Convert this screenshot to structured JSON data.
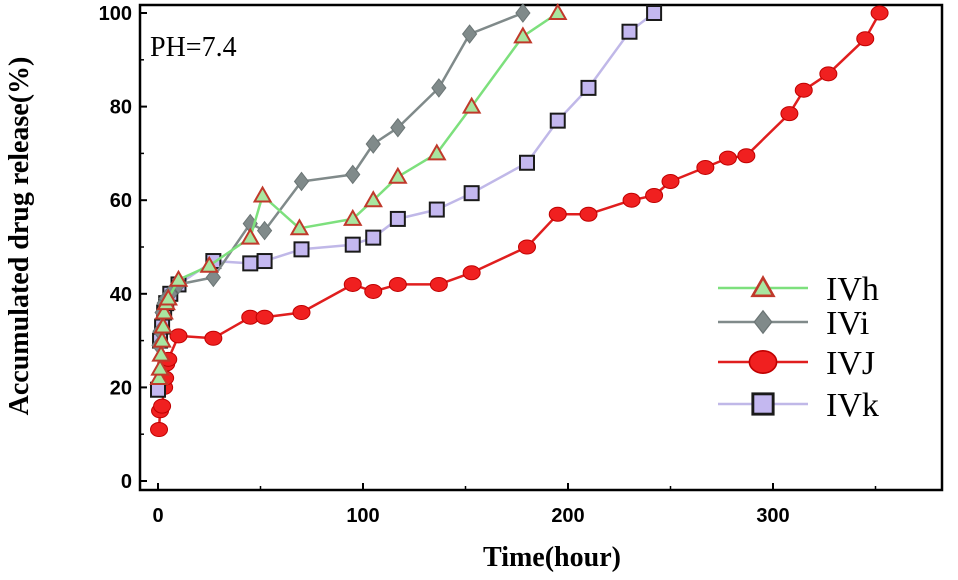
{
  "chart_data": {
    "type": "line",
    "title": "",
    "annotation": "PH=7.4",
    "xlabel": "Time(hour)",
    "ylabel": "Accumulated drug release(%)",
    "xlim": [
      -5,
      385
    ],
    "ylim": [
      -2,
      101
    ],
    "x_ticks": [
      0,
      100,
      200,
      300
    ],
    "y_ticks": [
      0,
      20,
      40,
      60,
      80,
      100
    ],
    "grid": false,
    "legend_position": "right",
    "series": [
      {
        "name": "IVh",
        "marker": "triangle",
        "line_color": "#7de07d",
        "marker_fill": "#a8e6a0",
        "marker_stroke": "#c0392b",
        "points": [
          [
            0.5,
            22
          ],
          [
            1,
            24
          ],
          [
            1.5,
            27
          ],
          [
            2,
            30
          ],
          [
            2.5,
            33
          ],
          [
            3,
            36
          ],
          [
            4,
            38
          ],
          [
            5,
            39
          ],
          [
            10,
            43
          ],
          [
            25,
            46
          ],
          [
            45,
            52
          ],
          [
            51,
            61
          ],
          [
            69,
            54
          ],
          [
            95,
            56
          ],
          [
            105,
            60
          ],
          [
            117,
            65
          ],
          [
            136,
            70
          ],
          [
            153,
            80
          ],
          [
            178,
            95
          ],
          [
            195,
            100
          ]
        ]
      },
      {
        "name": "IVi",
        "marker": "diamond",
        "line_color": "#808a8a",
        "marker_fill": "#808a8a",
        "marker_stroke": "#6b7575",
        "points": [
          [
            0.5,
            29
          ],
          [
            1,
            32
          ],
          [
            2,
            36
          ],
          [
            3,
            38
          ],
          [
            4,
            39
          ],
          [
            6,
            40
          ],
          [
            10,
            42
          ],
          [
            27,
            43.5
          ],
          [
            45,
            55
          ],
          [
            52,
            53.5
          ],
          [
            70,
            64
          ],
          [
            95,
            65.5
          ],
          [
            105,
            72
          ],
          [
            117,
            75.5
          ],
          [
            137,
            84
          ],
          [
            152,
            95.5
          ],
          [
            178,
            100
          ]
        ]
      },
      {
        "name": "IVJ",
        "marker": "circle",
        "line_color": "#e01e1e",
        "marker_fill": "#f02020",
        "marker_stroke": "#c00000",
        "points": [
          [
            0.5,
            11
          ],
          [
            1,
            15
          ],
          [
            2,
            16
          ],
          [
            3,
            20
          ],
          [
            3.5,
            22
          ],
          [
            4,
            25
          ],
          [
            5,
            26
          ],
          [
            10,
            31
          ],
          [
            27,
            30.5
          ],
          [
            45,
            35
          ],
          [
            52,
            35
          ],
          [
            70,
            36
          ],
          [
            95,
            42
          ],
          [
            105,
            40.5
          ],
          [
            117,
            42
          ],
          [
            137,
            42
          ],
          [
            153,
            44.5
          ],
          [
            180,
            50
          ],
          [
            195,
            57
          ],
          [
            210,
            57
          ],
          [
            231,
            60
          ],
          [
            242,
            61
          ],
          [
            250,
            64
          ],
          [
            267,
            67
          ],
          [
            278,
            69
          ],
          [
            287,
            69.5
          ],
          [
            308,
            78.5
          ],
          [
            315,
            83.5
          ],
          [
            327,
            87
          ],
          [
            345,
            94.5
          ],
          [
            352,
            100
          ]
        ]
      },
      {
        "name": "IVk",
        "marker": "square",
        "line_color": "#c0b8e8",
        "marker_fill": "#c4b8f0",
        "marker_stroke": "#1a1a1a",
        "points": [
          [
            0,
            19.5
          ],
          [
            1,
            30
          ],
          [
            2,
            33
          ],
          [
            3,
            36
          ],
          [
            4,
            38
          ],
          [
            6,
            40
          ],
          [
            10,
            42
          ],
          [
            27,
            47
          ],
          [
            45,
            46.5
          ],
          [
            52,
            47
          ],
          [
            70,
            49.5
          ],
          [
            95,
            50.5
          ],
          [
            105,
            52
          ],
          [
            117,
            56
          ],
          [
            136,
            58
          ],
          [
            153,
            61.5
          ],
          [
            180,
            68
          ],
          [
            195,
            77
          ],
          [
            210,
            84
          ],
          [
            230,
            96
          ],
          [
            242,
            100
          ]
        ]
      }
    ]
  }
}
